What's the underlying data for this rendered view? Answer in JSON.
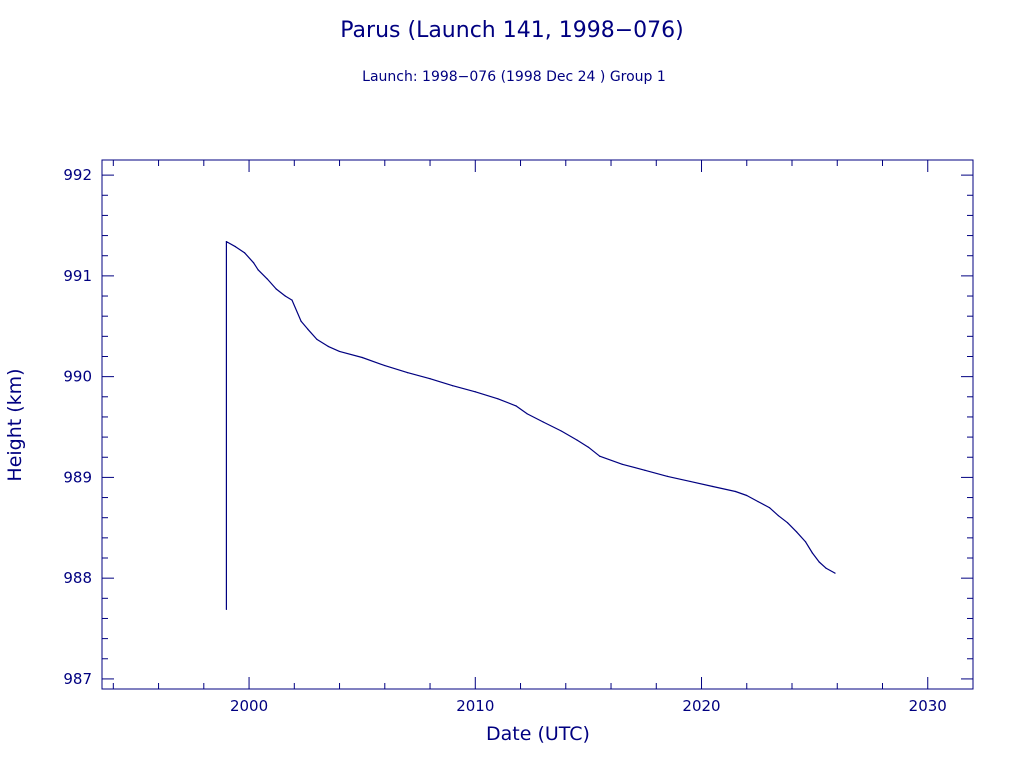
{
  "chart_data": {
    "type": "line",
    "title": "Parus (Launch 141, 1998−076)",
    "subtitle": "Launch: 1998−076  (1998 Dec 24 )  Group 1",
    "xlabel": "Date (UTC)",
    "ylabel": "Height (km)",
    "xlim": [
      1993.5,
      2032.0
    ],
    "ylim": [
      986.9,
      992.15
    ],
    "x_ticks": [
      2000,
      2010,
      2020,
      2030
    ],
    "y_ticks": [
      987,
      988,
      989,
      990,
      991,
      992
    ],
    "grid": false,
    "series": [
      {
        "color": "#000080",
        "x": [
          1999.0,
          1999.0,
          1999.4,
          1999.8,
          2000.2,
          2000.4,
          2000.8,
          2001.2,
          2001.6,
          2001.9,
          2002.3,
          2002.6,
          2003.0,
          2003.5,
          2004.0,
          2005.0,
          2006.0,
          2007.0,
          2008.0,
          2009.0,
          2010.0,
          2011.0,
          2011.8,
          2012.3,
          2013.0,
          2013.8,
          2014.5,
          2015.0,
          2015.5,
          2016.5,
          2017.5,
          2018.5,
          2019.5,
          2020.5,
          2021.5,
          2022.0,
          2022.5,
          2023.0,
          2023.4,
          2023.8,
          2024.2,
          2024.6,
          2024.9,
          2025.2,
          2025.5,
          2025.9
        ],
        "y": [
          987.69,
          991.34,
          991.29,
          991.23,
          991.13,
          991.06,
          990.97,
          990.87,
          990.8,
          990.76,
          990.55,
          990.47,
          990.37,
          990.3,
          990.25,
          990.19,
          990.11,
          990.04,
          989.98,
          989.91,
          989.85,
          989.78,
          989.71,
          989.63,
          989.55,
          989.46,
          989.37,
          989.3,
          989.21,
          989.13,
          989.07,
          989.01,
          988.96,
          988.91,
          988.86,
          988.82,
          988.76,
          988.7,
          988.62,
          988.55,
          988.46,
          988.36,
          988.25,
          988.16,
          988.1,
          988.05
        ]
      }
    ]
  }
}
